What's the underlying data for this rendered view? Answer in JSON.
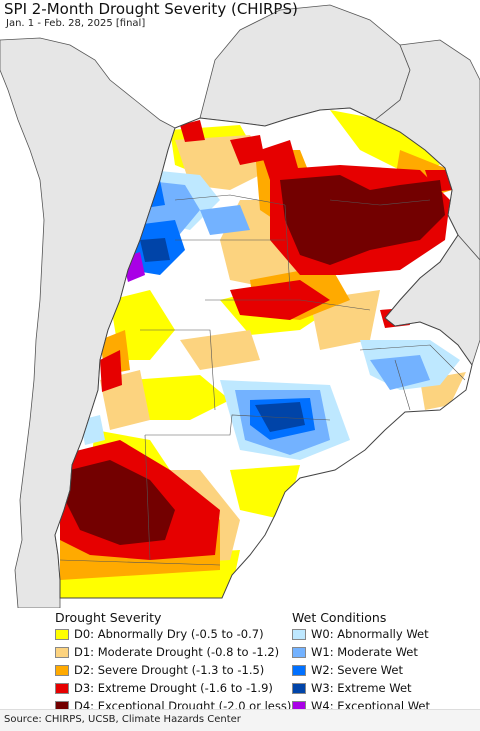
{
  "title": "SPI 2-Month Drought Severity (CHIRPS)",
  "subtitle": "Jan. 1 - Feb. 28, 2025 [final]",
  "colors": {
    "ocean": "#ffffff",
    "outside_land": "#dddddd",
    "border": "#555555",
    "D0": "#ffff00",
    "D1": "#fcd37f",
    "D2": "#ffaa00",
    "D3": "#e60000",
    "D4": "#730000",
    "W0": "#bee8ff",
    "W1": "#73b2ff",
    "W2": "#0070ff",
    "W3": "#0044a8",
    "W4": "#a900e6"
  },
  "legend": {
    "drought_title": "Drought Severity",
    "wet_title": "Wet Conditions",
    "drought_items": [
      {
        "label": "D0: Abnormally Dry (-0.5 to -0.7)",
        "color": "#ffff00"
      },
      {
        "label": "D1: Moderate Drought (-0.8 to -1.2)",
        "color": "#fcd37f"
      },
      {
        "label": "D2: Severe Drought (-1.3 to -1.5)",
        "color": "#ffaa00"
      },
      {
        "label": "D3: Extreme Drought (-1.6 to -1.9)",
        "color": "#e60000"
      },
      {
        "label": "D4: Exceptional Drought (-2.0 or less)",
        "color": "#730000"
      }
    ],
    "wet_items": [
      {
        "label": "W0: Abnormally Wet",
        "color": "#bee8ff"
      },
      {
        "label": "W1: Moderate Wet",
        "color": "#73b2ff"
      },
      {
        "label": "W2: Severe Wet",
        "color": "#0070ff"
      },
      {
        "label": "W3: Extreme Wet",
        "color": "#0044a8"
      },
      {
        "label": "W4: Exceptional Wet",
        "color": "#a900e6"
      }
    ]
  },
  "source": "Source: CHIRPS, UCSB, Climate Hazards Center"
}
